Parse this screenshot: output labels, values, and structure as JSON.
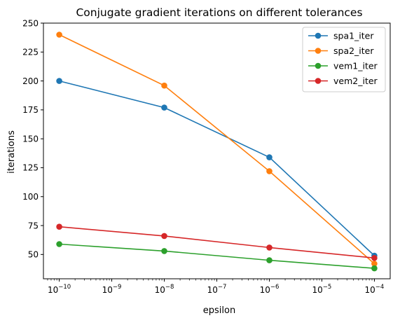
{
  "chart_data": {
    "type": "line",
    "title": "Conjugate gradient iterations on different tolerances",
    "xlabel": "epsilon",
    "ylabel": "iterations",
    "xscale": "log",
    "x": [
      1e-10,
      1e-08,
      1e-06,
      0.0001
    ],
    "xlim": [
      5e-11,
      0.0002
    ],
    "ylim": [
      29,
      250
    ],
    "xticks": [
      1e-10,
      1e-09,
      1e-08,
      1e-07,
      1e-06,
      1e-05,
      0.0001
    ],
    "xtick_labels": [
      "10",
      "10",
      "10",
      "10",
      "10",
      "10",
      "10"
    ],
    "xtick_exponents": [
      "−10",
      "−9",
      "−8",
      "−7",
      "−6",
      "−5",
      "−4"
    ],
    "yticks": [
      50,
      75,
      100,
      125,
      150,
      175,
      200,
      225,
      250
    ],
    "ytick_labels": [
      "50",
      "75",
      "100",
      "125",
      "150",
      "175",
      "200",
      "225",
      "250"
    ],
    "grid": false,
    "legend_position": "top-right",
    "series": [
      {
        "name": "spa1_iter",
        "color": "#1f77b4",
        "values": [
          200,
          177,
          134,
          49
        ]
      },
      {
        "name": "spa2_iter",
        "color": "#ff7f0e",
        "values": [
          240,
          196,
          122,
          42
        ]
      },
      {
        "name": "vem1_iter",
        "color": "#2ca02c",
        "values": [
          59,
          53,
          45,
          38
        ]
      },
      {
        "name": "vem2_iter",
        "color": "#d62728",
        "values": [
          74,
          66,
          56,
          47
        ]
      }
    ]
  }
}
